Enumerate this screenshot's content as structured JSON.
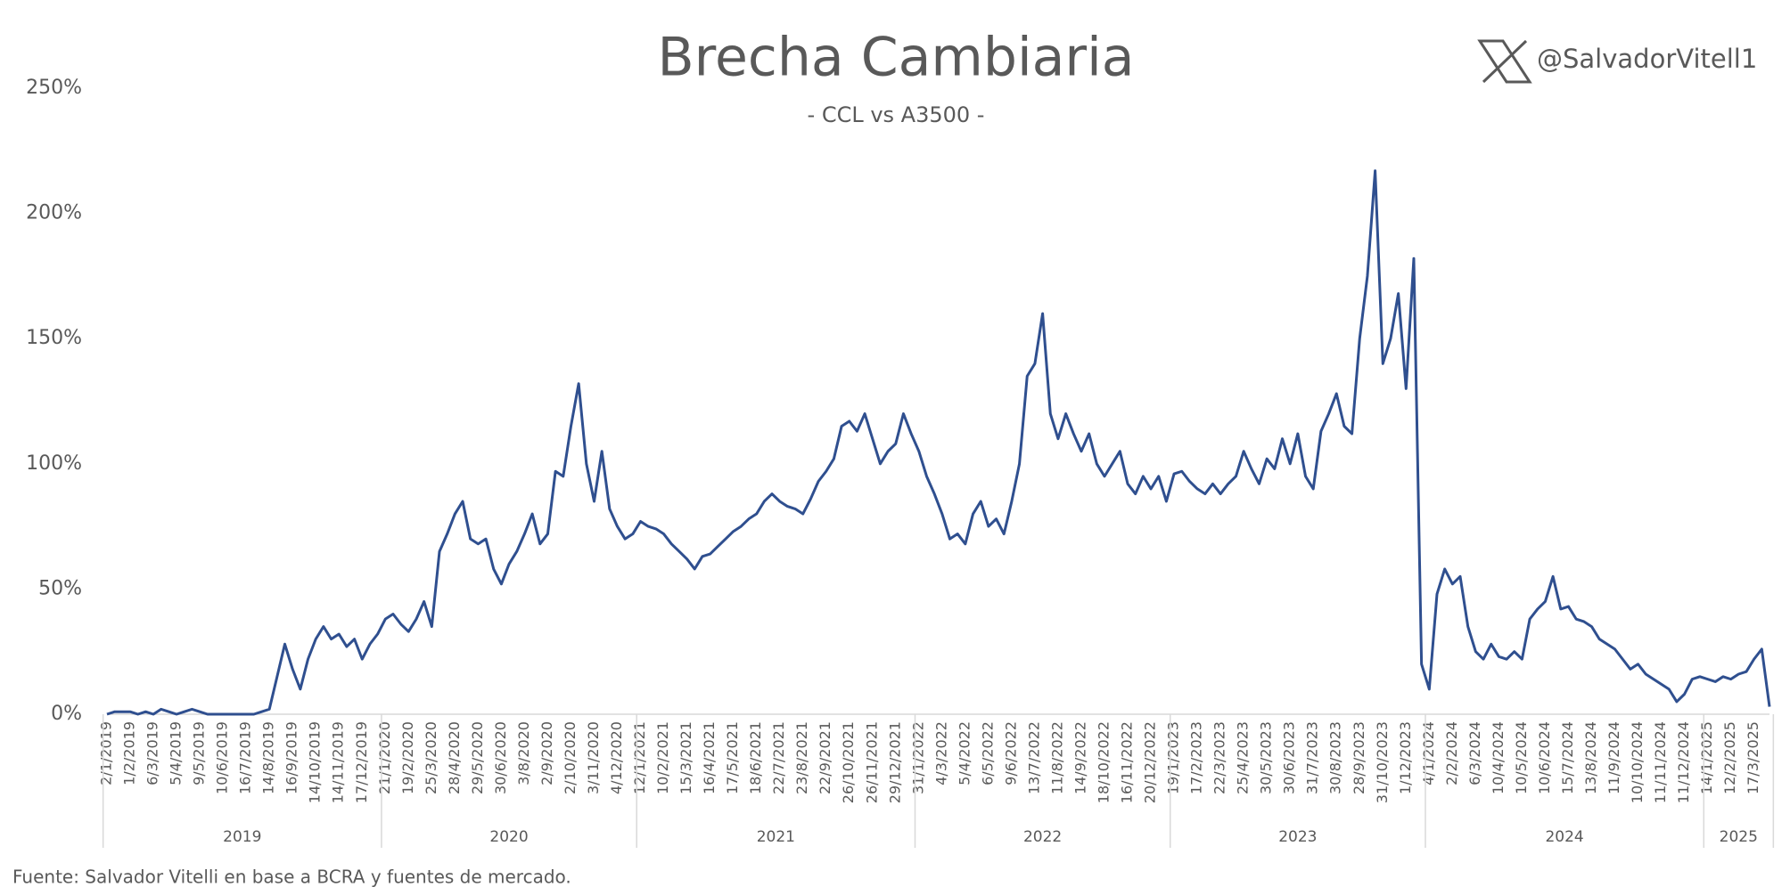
{
  "chart_data": {
    "type": "line",
    "title": "Brecha Cambiaria",
    "subtitle": "- CCL vs A3500 -",
    "handle": "@SalvadorVitell1",
    "source": "Fuente: Salvador Vitelli en base a BCRA y fuentes de mercado.",
    "ylim": [
      0,
      250
    ],
    "yticks": [
      {
        "value": 0,
        "label": "0%"
      },
      {
        "value": 50,
        "label": "50%"
      },
      {
        "value": 100,
        "label": "100%"
      },
      {
        "value": 150,
        "label": "150%"
      },
      {
        "value": 200,
        "label": "200%"
      },
      {
        "value": 250,
        "label": "250%"
      }
    ],
    "grid": false,
    "year_groups": [
      "2019",
      "2020",
      "2021",
      "2022",
      "2023",
      "2024",
      "2025"
    ],
    "categories": [
      "2/1/2019",
      null,
      null,
      "1/2/2019",
      null,
      null,
      "6/3/2019",
      null,
      null,
      "5/4/2019",
      null,
      null,
      "9/5/2019",
      null,
      null,
      "10/6/2019",
      null,
      null,
      "16/7/2019",
      null,
      null,
      "14/8/2019",
      null,
      null,
      "16/9/2019",
      null,
      null,
      "14/10/2019",
      null,
      null,
      "14/11/2019",
      null,
      null,
      "17/12/2019",
      null,
      null,
      "21/1/2020",
      null,
      null,
      "19/2/2020",
      null,
      null,
      "25/3/2020",
      null,
      null,
      "28/4/2020",
      null,
      null,
      "29/5/2020",
      null,
      null,
      "30/6/2020",
      null,
      null,
      "3/8/2020",
      null,
      null,
      "2/9/2020",
      null,
      null,
      "2/10/2020",
      null,
      null,
      "3/11/2020",
      null,
      null,
      "4/12/2020",
      null,
      null,
      "12/1/2021",
      null,
      null,
      "10/2/2021",
      null,
      null,
      "15/3/2021",
      null,
      null,
      "16/4/2021",
      null,
      null,
      "17/5/2021",
      null,
      null,
      "18/6/2021",
      null,
      null,
      "22/7/2021",
      null,
      null,
      "23/8/2021",
      null,
      null,
      "22/9/2021",
      null,
      null,
      "26/10/2021",
      null,
      null,
      "26/11/2021",
      null,
      null,
      "29/12/2021",
      null,
      null,
      "31/1/2022",
      null,
      null,
      "4/3/2022",
      null,
      null,
      "5/4/2022",
      null,
      null,
      "6/5/2022",
      null,
      null,
      "9/6/2022",
      null,
      null,
      "13/7/2022",
      null,
      null,
      "11/8/2022",
      null,
      null,
      "14/9/2022",
      null,
      null,
      "18/10/2022",
      null,
      null,
      "16/11/2022",
      null,
      null,
      "20/12/2022",
      null,
      null,
      "19/1/2023",
      null,
      null,
      "17/2/2023",
      null,
      null,
      "22/3/2023",
      null,
      null,
      "25/4/2023",
      null,
      null,
      "30/5/2023",
      null,
      null,
      "30/6/2023",
      null,
      null,
      "31/7/2023",
      null,
      null,
      "30/8/2023",
      null,
      null,
      "28/9/2023",
      null,
      null,
      "31/10/2023",
      null,
      null,
      "1/12/2023",
      null,
      null,
      "4/1/2024",
      null,
      null,
      "2/2/2024",
      null,
      null,
      "6/3/2024",
      null,
      null,
      "10/4/2024",
      null,
      null,
      "10/5/2024",
      null,
      null,
      "10/6/2024",
      null,
      null,
      "15/7/2024",
      null,
      null,
      "13/8/2024",
      null,
      null,
      "11/9/2024",
      null,
      null,
      "10/10/2024",
      null,
      null,
      "11/11/2024",
      null,
      null,
      "11/12/2024",
      null,
      null,
      "14/1/2025",
      null,
      null,
      "12/2/2025",
      null,
      null,
      "17/3/2025",
      null,
      null
    ],
    "series": [
      {
        "name": "Brecha CCL vs A3500",
        "color": "#2f4f8f",
        "values": [
          0,
          1,
          1,
          1,
          0,
          1,
          0,
          2,
          1,
          0,
          1,
          2,
          1,
          0,
          0,
          0,
          0,
          0,
          0,
          0,
          1,
          2,
          15,
          28,
          18,
          10,
          22,
          30,
          35,
          30,
          32,
          27,
          30,
          22,
          28,
          32,
          38,
          40,
          36,
          33,
          38,
          45,
          35,
          65,
          72,
          80,
          85,
          70,
          68,
          70,
          58,
          52,
          60,
          65,
          72,
          80,
          68,
          72,
          97,
          95,
          115,
          132,
          100,
          85,
          105,
          82,
          75,
          70,
          72,
          77,
          75,
          74,
          72,
          68,
          65,
          62,
          58,
          63,
          64,
          67,
          70,
          73,
          75,
          78,
          80,
          85,
          88,
          85,
          83,
          82,
          80,
          86,
          93,
          97,
          102,
          115,
          117,
          113,
          120,
          110,
          100,
          105,
          108,
          120,
          112,
          105,
          95,
          88,
          80,
          70,
          72,
          68,
          80,
          85,
          75,
          78,
          72,
          85,
          100,
          135,
          140,
          160,
          120,
          110,
          120,
          112,
          105,
          112,
          100,
          95,
          100,
          105,
          92,
          88,
          95,
          90,
          95,
          85,
          96,
          97,
          93,
          90,
          88,
          92,
          88,
          92,
          95,
          105,
          98,
          92,
          102,
          98,
          110,
          100,
          112,
          95,
          90,
          113,
          120,
          128,
          115,
          112,
          150,
          175,
          217,
          140,
          150,
          168,
          130,
          182,
          20,
          10,
          48,
          58,
          52,
          55,
          35,
          25,
          22,
          28,
          23,
          22,
          25,
          22,
          38,
          42,
          45,
          55,
          42,
          43,
          38,
          37,
          35,
          30,
          28,
          26,
          22,
          18,
          20,
          16,
          14,
          12,
          10,
          5,
          8,
          14,
          15,
          14,
          13,
          15,
          14,
          16,
          17,
          22,
          26,
          3
        ]
      }
    ]
  }
}
